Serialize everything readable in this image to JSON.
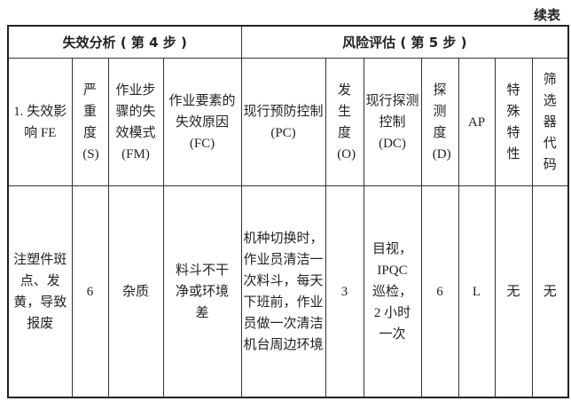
{
  "continued_label": "续表",
  "group_headers": [
    "失效分析 ( 第 4 步 )",
    "风险评估 ( 第 5 步 )"
  ],
  "columns": [
    "1. 失效影响 FE",
    "严重度 (S)",
    "作业步骤的失效模式 (FM)",
    "作业要素的失效原因 (FC)",
    "现行预防控制 (PC)",
    "发生度 (O)",
    "现行探测控制 (DC)",
    "探测度 (D)",
    "AP",
    "特殊特性",
    "筛选器代码"
  ],
  "rows": [
    [
      "注塑件斑点、发黄，导致报废",
      "6",
      "杂质",
      "料斗不干净或环境差",
      "机种切换时，作业员清洁一次料斗，每天下班前，作业员做一次清洁机台周边环境",
      "3",
      "目视，IPQC巡检，2 小时一次",
      "6",
      "L",
      "无",
      "无"
    ]
  ]
}
